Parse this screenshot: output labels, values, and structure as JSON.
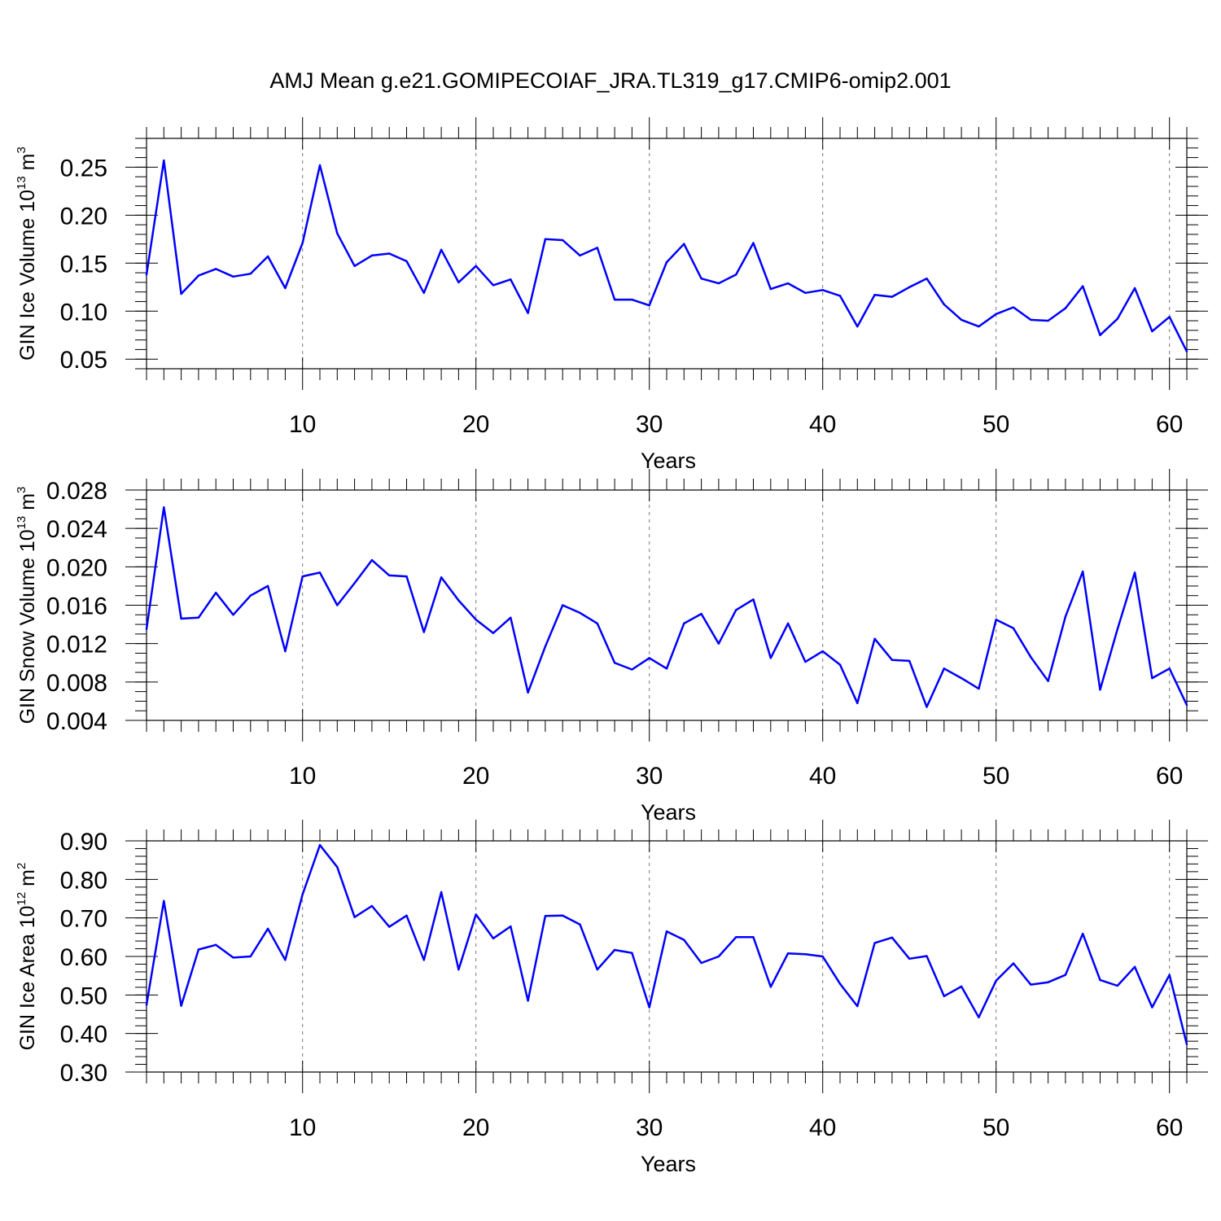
{
  "title": "AMJ Mean g.e21.GOMIPECOIAF_JRA.TL319_g17.CMIP6-omip2.001",
  "chart_data": [
    {
      "type": "line",
      "ylabel_main": "GIN Ice Volume 10",
      "ylabel_exp": "13",
      "ylabel_unit": " m",
      "ylabel_unit_exp": "3",
      "xlabel": "Years",
      "xlim": [
        1,
        61
      ],
      "ylim": [
        0.04,
        0.28
      ],
      "xticks": [
        10,
        20,
        30,
        40,
        50,
        60
      ],
      "yticks": [
        "0.05",
        "0.10",
        "0.15",
        "0.20",
        "0.25"
      ],
      "ytick_values": [
        0.05,
        0.1,
        0.15,
        0.2,
        0.25
      ],
      "minor_step": 0.01,
      "grid": "vertical-dashed",
      "color": "#0000ff",
      "x": [
        1,
        2,
        3,
        4,
        5,
        6,
        7,
        8,
        9,
        10,
        11,
        12,
        13,
        14,
        15,
        16,
        17,
        18,
        19,
        20,
        21,
        22,
        23,
        24,
        25,
        26,
        27,
        28,
        29,
        30,
        31,
        32,
        33,
        34,
        35,
        36,
        37,
        38,
        39,
        40,
        41,
        42,
        43,
        44,
        45,
        46,
        47,
        48,
        49,
        50,
        51,
        52,
        53,
        54,
        55,
        56,
        57,
        58,
        59,
        60,
        61
      ],
      "values": [
        0.138,
        0.257,
        0.118,
        0.137,
        0.144,
        0.136,
        0.139,
        0.157,
        0.124,
        0.171,
        0.252,
        0.181,
        0.147,
        0.158,
        0.16,
        0.152,
        0.119,
        0.164,
        0.13,
        0.147,
        0.127,
        0.133,
        0.098,
        0.175,
        0.174,
        0.158,
        0.166,
        0.112,
        0.112,
        0.106,
        0.151,
        0.17,
        0.134,
        0.129,
        0.138,
        0.171,
        0.123,
        0.129,
        0.119,
        0.122,
        0.116,
        0.084,
        0.117,
        0.115,
        0.125,
        0.134,
        0.107,
        0.091,
        0.084,
        0.097,
        0.104,
        0.091,
        0.09,
        0.103,
        0.126,
        0.075,
        0.092,
        0.124,
        0.079,
        0.094,
        0.058
      ]
    },
    {
      "type": "line",
      "ylabel_main": "GIN Snow Volume 10",
      "ylabel_exp": "13",
      "ylabel_unit": " m",
      "ylabel_unit_exp": "3",
      "xlabel": "Years",
      "xlim": [
        1,
        61
      ],
      "ylim": [
        0.004,
        0.028
      ],
      "xticks": [
        10,
        20,
        30,
        40,
        50,
        60
      ],
      "yticks": [
        "0.004",
        "0.008",
        "0.012",
        "0.016",
        "0.020",
        "0.024",
        "0.028"
      ],
      "ytick_values": [
        0.004,
        0.008,
        0.012,
        0.016,
        0.02,
        0.024,
        0.028
      ],
      "minor_step": 0.001,
      "grid": "vertical-dashed",
      "color": "#0000ff",
      "x": [
        1,
        2,
        3,
        4,
        5,
        6,
        7,
        8,
        9,
        10,
        11,
        12,
        13,
        14,
        15,
        16,
        17,
        18,
        19,
        20,
        21,
        22,
        23,
        24,
        25,
        26,
        27,
        28,
        29,
        30,
        31,
        32,
        33,
        34,
        35,
        36,
        37,
        38,
        39,
        40,
        41,
        42,
        43,
        44,
        45,
        46,
        47,
        48,
        49,
        50,
        51,
        52,
        53,
        54,
        55,
        56,
        57,
        58,
        59,
        60,
        61
      ],
      "values": [
        0.0135,
        0.0262,
        0.0146,
        0.0147,
        0.0173,
        0.015,
        0.017,
        0.018,
        0.0112,
        0.019,
        0.0194,
        0.016,
        0.0183,
        0.0207,
        0.0191,
        0.019,
        0.0132,
        0.0189,
        0.0165,
        0.0145,
        0.0131,
        0.0147,
        0.0069,
        0.0117,
        0.016,
        0.0152,
        0.0141,
        0.01,
        0.0093,
        0.0105,
        0.0094,
        0.0141,
        0.0151,
        0.012,
        0.0155,
        0.0166,
        0.0105,
        0.0141,
        0.0101,
        0.0112,
        0.0098,
        0.0058,
        0.0125,
        0.0103,
        0.0102,
        0.0054,
        0.0094,
        0.0084,
        0.0073,
        0.0145,
        0.0136,
        0.0106,
        0.0081,
        0.0148,
        0.0195,
        0.0072,
        0.0135,
        0.0194,
        0.0084,
        0.0094,
        0.0056
      ]
    },
    {
      "type": "line",
      "ylabel_main": "GIN Ice Area 10",
      "ylabel_exp": "12",
      "ylabel_unit": " m",
      "ylabel_unit_exp": "2",
      "xlabel": "Years",
      "xlim": [
        1,
        61
      ],
      "ylim": [
        0.3,
        0.9
      ],
      "xticks": [
        10,
        20,
        30,
        40,
        50,
        60
      ],
      "yticks": [
        "0.30",
        "0.40",
        "0.50",
        "0.60",
        "0.70",
        "0.80",
        "0.90"
      ],
      "ytick_values": [
        0.3,
        0.4,
        0.5,
        0.6,
        0.7,
        0.8,
        0.9
      ],
      "minor_step": 0.02,
      "grid": "vertical-dashed",
      "color": "#0000ff",
      "x": [
        1,
        2,
        3,
        4,
        5,
        6,
        7,
        8,
        9,
        10,
        11,
        12,
        13,
        14,
        15,
        16,
        17,
        18,
        19,
        20,
        21,
        22,
        23,
        24,
        25,
        26,
        27,
        28,
        29,
        30,
        31,
        32,
        33,
        34,
        35,
        36,
        37,
        38,
        39,
        40,
        41,
        42,
        43,
        44,
        45,
        46,
        47,
        48,
        49,
        50,
        51,
        52,
        53,
        54,
        55,
        56,
        57,
        58,
        59,
        60,
        61
      ],
      "values": [
        0.474,
        0.744,
        0.472,
        0.618,
        0.63,
        0.597,
        0.6,
        0.672,
        0.591,
        0.761,
        0.889,
        0.832,
        0.702,
        0.731,
        0.677,
        0.706,
        0.591,
        0.767,
        0.566,
        0.709,
        0.647,
        0.678,
        0.485,
        0.705,
        0.706,
        0.683,
        0.566,
        0.617,
        0.609,
        0.468,
        0.665,
        0.643,
        0.583,
        0.6,
        0.65,
        0.65,
        0.521,
        0.608,
        0.606,
        0.6,
        0.529,
        0.471,
        0.635,
        0.649,
        0.594,
        0.601,
        0.497,
        0.522,
        0.442,
        0.537,
        0.582,
        0.527,
        0.533,
        0.552,
        0.659,
        0.539,
        0.524,
        0.573,
        0.468,
        0.552,
        0.372
      ]
    }
  ]
}
